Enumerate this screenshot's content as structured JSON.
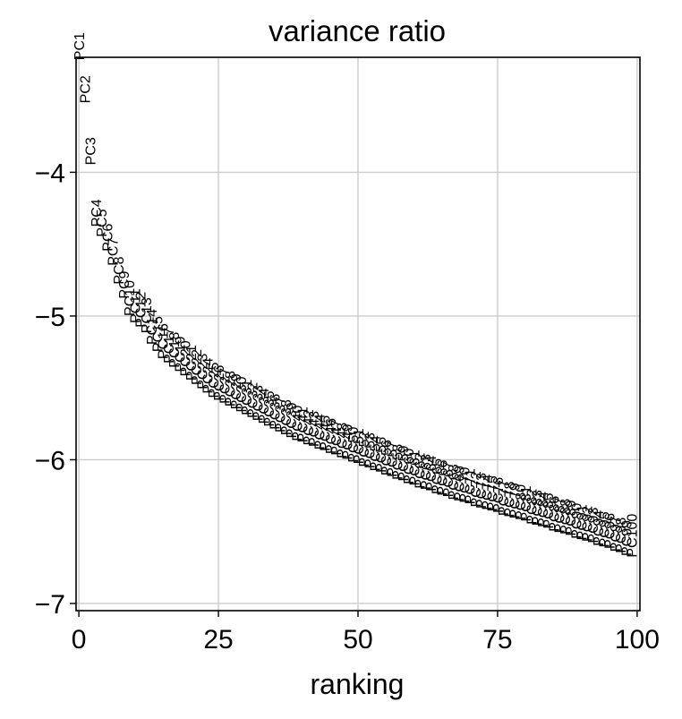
{
  "chart_data": {
    "type": "scatter",
    "title": "variance ratio",
    "xlabel": "ranking",
    "ylabel": "",
    "xlim": [
      -0.5,
      100.5
    ],
    "ylim": [
      -7.05,
      -3.2
    ],
    "xticks": [
      0,
      25,
      50,
      75,
      100
    ],
    "xtick_labels": [
      "0",
      "25",
      "50",
      "75",
      "100"
    ],
    "yticks": [
      -4,
      -5,
      -6,
      -7
    ],
    "ytick_labels": [
      "−4",
      "−5",
      "−6",
      "−7"
    ],
    "grid": true,
    "marker_text_prefix": "PC",
    "label_rotation_deg": 90,
    "points": [
      {
        "label": "PC1",
        "x": 0,
        "y": -3.22
      },
      {
        "label": "PC2",
        "x": 1,
        "y": -3.52
      },
      {
        "label": "PC3",
        "x": 2,
        "y": -3.95
      },
      {
        "label": "PC4",
        "x": 3,
        "y": -4.38
      },
      {
        "label": "PC5",
        "x": 4,
        "y": -4.45
      },
      {
        "label": "PC6",
        "x": 5,
        "y": -4.55
      },
      {
        "label": "PC7",
        "x": 6,
        "y": -4.65
      },
      {
        "label": "PC8",
        "x": 7,
        "y": -4.78
      },
      {
        "label": "PC9",
        "x": 8,
        "y": -4.88
      },
      {
        "label": "PC10",
        "x": 9,
        "y": -5.0
      },
      {
        "label": "PC11",
        "x": 10,
        "y": -5.05
      },
      {
        "label": "PC12",
        "x": 11,
        "y": -5.08
      },
      {
        "label": "PC13",
        "x": 12,
        "y": -5.12
      },
      {
        "label": "PC14",
        "x": 13,
        "y": -5.2
      },
      {
        "label": "PC15",
        "x": 14,
        "y": -5.25
      },
      {
        "label": "PC16",
        "x": 15,
        "y": -5.3
      },
      {
        "label": "PC17",
        "x": 16,
        "y": -5.33
      },
      {
        "label": "PC18",
        "x": 17,
        "y": -5.36
      },
      {
        "label": "PC19",
        "x": 18,
        "y": -5.39
      },
      {
        "label": "PC20",
        "x": 19,
        "y": -5.42
      },
      {
        "label": "PC21",
        "x": 20,
        "y": -5.45
      },
      {
        "label": "PC22",
        "x": 21,
        "y": -5.48
      },
      {
        "label": "PC23",
        "x": 22,
        "y": -5.51
      },
      {
        "label": "PC24",
        "x": 23,
        "y": -5.54
      },
      {
        "label": "PC25",
        "x": 24,
        "y": -5.57
      },
      {
        "label": "PC26",
        "x": 25,
        "y": -5.59
      },
      {
        "label": "PC27",
        "x": 26,
        "y": -5.61
      },
      {
        "label": "PC28",
        "x": 27,
        "y": -5.63
      },
      {
        "label": "PC29",
        "x": 28,
        "y": -5.65
      },
      {
        "label": "PC30",
        "x": 29,
        "y": -5.67
      },
      {
        "label": "PC31",
        "x": 30,
        "y": -5.69
      },
      {
        "label": "PC32",
        "x": 31,
        "y": -5.71
      },
      {
        "label": "PC33",
        "x": 32,
        "y": -5.73
      },
      {
        "label": "PC34",
        "x": 33,
        "y": -5.75
      },
      {
        "label": "PC35",
        "x": 34,
        "y": -5.77
      },
      {
        "label": "PC36",
        "x": 35,
        "y": -5.79
      },
      {
        "label": "PC37",
        "x": 36,
        "y": -5.81
      },
      {
        "label": "PC38",
        "x": 37,
        "y": -5.83
      },
      {
        "label": "PC39",
        "x": 38,
        "y": -5.85
      },
      {
        "label": "PC40",
        "x": 39,
        "y": -5.87
      },
      {
        "label": "PC41",
        "x": 40,
        "y": -5.88
      },
      {
        "label": "PC42",
        "x": 41,
        "y": -5.9
      },
      {
        "label": "PC43",
        "x": 42,
        "y": -5.91
      },
      {
        "label": "PC44",
        "x": 43,
        "y": -5.93
      },
      {
        "label": "PC45",
        "x": 44,
        "y": -5.94
      },
      {
        "label": "PC46",
        "x": 45,
        "y": -5.96
      },
      {
        "label": "PC47",
        "x": 46,
        "y": -5.97
      },
      {
        "label": "PC48",
        "x": 47,
        "y": -5.99
      },
      {
        "label": "PC49",
        "x": 48,
        "y": -6.0
      },
      {
        "label": "PC50",
        "x": 49,
        "y": -6.02
      },
      {
        "label": "PC51",
        "x": 50,
        "y": -6.03
      },
      {
        "label": "PC52",
        "x": 51,
        "y": -6.05
      },
      {
        "label": "PC53",
        "x": 52,
        "y": -6.06
      },
      {
        "label": "PC54",
        "x": 53,
        "y": -6.08
      },
      {
        "label": "PC55",
        "x": 54,
        "y": -6.09
      },
      {
        "label": "PC56",
        "x": 55,
        "y": -6.11
      },
      {
        "label": "PC57",
        "x": 56,
        "y": -6.12
      },
      {
        "label": "PC58",
        "x": 57,
        "y": -6.14
      },
      {
        "label": "PC59",
        "x": 58,
        "y": -6.15
      },
      {
        "label": "PC60",
        "x": 59,
        "y": -6.17
      },
      {
        "label": "PC61",
        "x": 60,
        "y": -6.18
      },
      {
        "label": "PC62",
        "x": 61,
        "y": -6.2
      },
      {
        "label": "PC63",
        "x": 62,
        "y": -6.21
      },
      {
        "label": "PC64",
        "x": 63,
        "y": -6.22
      },
      {
        "label": "PC65",
        "x": 64,
        "y": -6.24
      },
      {
        "label": "PC66",
        "x": 65,
        "y": -6.25
      },
      {
        "label": "PC67",
        "x": 66,
        "y": -6.26
      },
      {
        "label": "PC68",
        "x": 67,
        "y": -6.28
      },
      {
        "label": "PC69",
        "x": 68,
        "y": -6.29
      },
      {
        "label": "PC70",
        "x": 69,
        "y": -6.3
      },
      {
        "label": "PC71",
        "x": 70,
        "y": -6.31
      },
      {
        "label": "PC72",
        "x": 71,
        "y": -6.33
      },
      {
        "label": "PC73",
        "x": 72,
        "y": -6.34
      },
      {
        "label": "PC74",
        "x": 73,
        "y": -6.35
      },
      {
        "label": "PC75",
        "x": 74,
        "y": -6.36
      },
      {
        "label": "PC76",
        "x": 75,
        "y": -6.37
      },
      {
        "label": "PC77",
        "x": 76,
        "y": -6.39
      },
      {
        "label": "PC78",
        "x": 77,
        "y": -6.4
      },
      {
        "label": "PC79",
        "x": 78,
        "y": -6.41
      },
      {
        "label": "PC80",
        "x": 79,
        "y": -6.42
      },
      {
        "label": "PC81",
        "x": 80,
        "y": -6.43
      },
      {
        "label": "PC82",
        "x": 81,
        "y": -6.45
      },
      {
        "label": "PC83",
        "x": 82,
        "y": -6.46
      },
      {
        "label": "PC84",
        "x": 83,
        "y": -6.47
      },
      {
        "label": "PC85",
        "x": 84,
        "y": -6.48
      },
      {
        "label": "PC86",
        "x": 85,
        "y": -6.5
      },
      {
        "label": "PC87",
        "x": 86,
        "y": -6.51
      },
      {
        "label": "PC88",
        "x": 87,
        "y": -6.52
      },
      {
        "label": "PC89",
        "x": 88,
        "y": -6.53
      },
      {
        "label": "PC90",
        "x": 89,
        "y": -6.55
      },
      {
        "label": "PC91",
        "x": 90,
        "y": -6.56
      },
      {
        "label": "PC92",
        "x": 91,
        "y": -6.57
      },
      {
        "label": "PC93",
        "x": 92,
        "y": -6.58
      },
      {
        "label": "PC94",
        "x": 93,
        "y": -6.6
      },
      {
        "label": "PC95",
        "x": 94,
        "y": -6.61
      },
      {
        "label": "PC96",
        "x": 95,
        "y": -6.62
      },
      {
        "label": "PC97",
        "x": 96,
        "y": -6.64
      },
      {
        "label": "PC98",
        "x": 97,
        "y": -6.65
      },
      {
        "label": "PC99",
        "x": 98,
        "y": -6.67
      },
      {
        "label": "PC100",
        "x": 99,
        "y": -6.68
      }
    ]
  }
}
